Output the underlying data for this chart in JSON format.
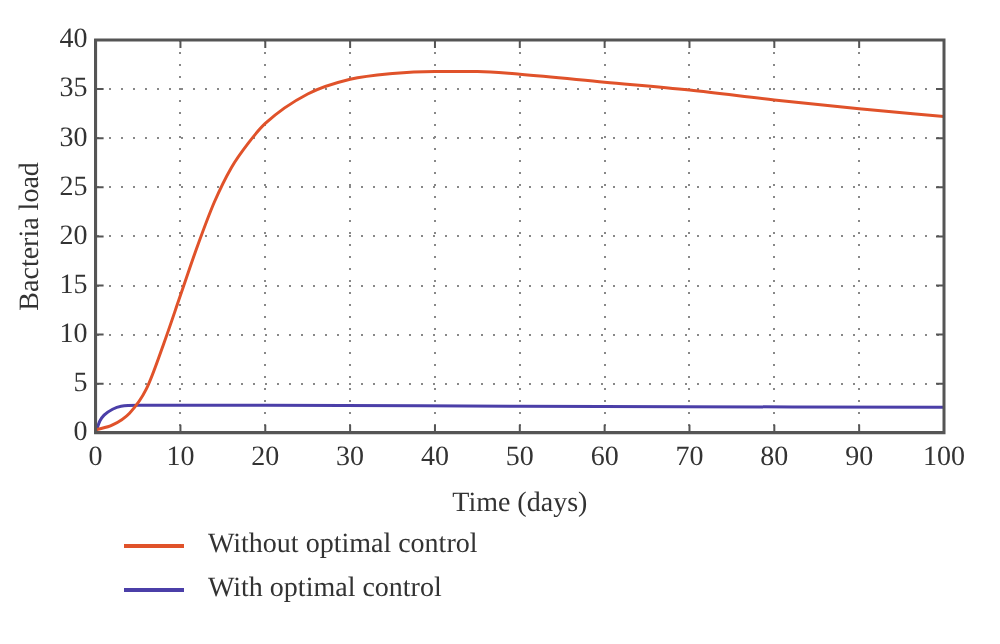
{
  "chart_data": {
    "type": "line",
    "xlabel": "Time (days)",
    "ylabel": "Bacteria load",
    "xlim": [
      0,
      100
    ],
    "xticks": [
      0,
      10,
      20,
      30,
      40,
      50,
      60,
      70,
      80,
      90,
      100
    ],
    "ylim": [
      0,
      40
    ],
    "yticks": [
      0,
      5,
      10,
      15,
      20,
      25,
      30,
      35,
      40
    ],
    "grid": true,
    "legend": "bottom",
    "marker": "none",
    "line_style": "solid",
    "series": [
      {
        "name": "Without optimal control",
        "color": "#e0522a",
        "x": [
          0,
          2,
          4,
          6,
          8,
          10,
          12,
          14,
          16,
          18,
          20,
          25,
          30,
          35,
          40,
          45,
          50,
          60,
          70,
          80,
          90,
          100
        ],
        "values": [
          0.3,
          0.8,
          2,
          4.5,
          9,
          14,
          19,
          23.5,
          27,
          29.5,
          31.5,
          34.5,
          36,
          36.6,
          36.8,
          36.8,
          36.5,
          35.7,
          34.9,
          33.9,
          33,
          32.2
        ]
      },
      {
        "name": "With optimal control",
        "color": "#4b3fa8",
        "x": [
          0,
          0.5,
          1,
          2,
          3,
          5,
          20,
          50,
          100
        ],
        "values": [
          0,
          1.2,
          1.8,
          2.4,
          2.7,
          2.8,
          2.8,
          2.7,
          2.6
        ]
      }
    ]
  }
}
